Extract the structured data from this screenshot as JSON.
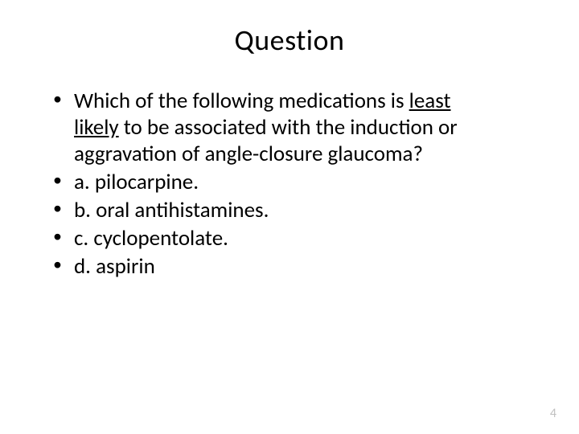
{
  "slide": {
    "title": "Question",
    "page_number": "4",
    "title_fontsize": 36,
    "body_fontsize": 27,
    "background_color": "#ffffff",
    "text_color": "#000000",
    "page_number_color": "#bfbfbf",
    "bullet_style": "disc",
    "question": {
      "text_pre": "Which of the following medications is ",
      "underlined1": "least",
      "underlined2": "likely",
      "text_post": " to be associated with the induction or aggravation of angle-closure glaucoma?"
    },
    "options": [
      "a. pilocarpine.",
      "b. oral antihistamines.",
      "c. cyclopentolate.",
      "d. aspirin"
    ]
  }
}
